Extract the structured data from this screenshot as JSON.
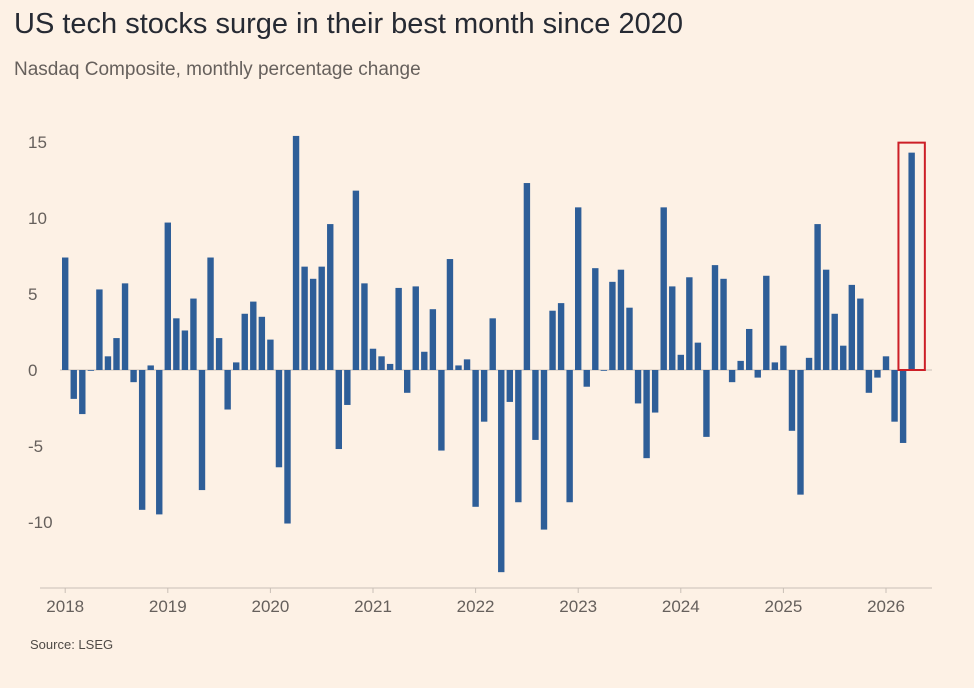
{
  "header": {
    "title": "US tech stocks surge in their best month since 2020",
    "subtitle": "Nasdaq Composite, monthly percentage change"
  },
  "footer": {
    "source": "Source: LSEG"
  },
  "colors": {
    "bar": "#2e5e98",
    "highlight": "#cc1f27",
    "axis": "#c9bfb6",
    "grid": "#e9dccf"
  },
  "chart_data": {
    "type": "bar",
    "title": "US tech stocks surge in their best month since 2020",
    "subtitle": "Nasdaq Composite, monthly percentage change",
    "xlabel": "",
    "ylabel": "",
    "ylim": [
      -14,
      16
    ],
    "yticks": [
      15,
      10,
      5,
      0,
      -5,
      -10
    ],
    "ytick_labels": [
      "15",
      "10",
      "5",
      "0",
      "-5",
      "-10"
    ],
    "xtick_labels": [
      "2018",
      "2019",
      "2020",
      "2021",
      "2022",
      "2023",
      "2024",
      "2025",
      "2026"
    ],
    "start": "2018-01",
    "grid": false,
    "highlight": {
      "label": "2026-04"
    },
    "categories": [
      "2018-01",
      "2018-02",
      "2018-03",
      "2018-04",
      "2018-05",
      "2018-06",
      "2018-07",
      "2018-08",
      "2018-09",
      "2018-10",
      "2018-11",
      "2018-12",
      "2019-01",
      "2019-02",
      "2019-03",
      "2019-04",
      "2019-05",
      "2019-06",
      "2019-07",
      "2019-08",
      "2019-09",
      "2019-10",
      "2019-11",
      "2019-12",
      "2020-01",
      "2020-02",
      "2020-03",
      "2020-04",
      "2020-05",
      "2020-06",
      "2020-07",
      "2020-08",
      "2020-09",
      "2020-10",
      "2020-11",
      "2020-12",
      "2021-01",
      "2021-02",
      "2021-03",
      "2021-04",
      "2021-05",
      "2021-06",
      "2021-07",
      "2021-08",
      "2021-09",
      "2021-10",
      "2021-11",
      "2021-12",
      "2022-01",
      "2022-02",
      "2022-03",
      "2022-04",
      "2022-05",
      "2022-06",
      "2022-07",
      "2022-08",
      "2022-09",
      "2022-10",
      "2022-11",
      "2022-12",
      "2023-01",
      "2023-02",
      "2023-03",
      "2023-04",
      "2023-05",
      "2023-06",
      "2023-07",
      "2023-08",
      "2023-09",
      "2023-10",
      "2023-11",
      "2023-12",
      "2024-01",
      "2024-02",
      "2024-03",
      "2024-04",
      "2024-05",
      "2024-06",
      "2024-07",
      "2024-08",
      "2024-09",
      "2024-10",
      "2024-11",
      "2024-12",
      "2025-01",
      "2025-02",
      "2025-03",
      "2025-04",
      "2025-05",
      "2025-06",
      "2025-07",
      "2025-08",
      "2025-09",
      "2025-10",
      "2025-11",
      "2025-12",
      "2026-01",
      "2026-02",
      "2026-03",
      "2026-04"
    ],
    "values": [
      7.4,
      -1.9,
      -2.9,
      0.0,
      5.3,
      0.9,
      2.1,
      5.7,
      -0.8,
      -9.2,
      0.3,
      -9.5,
      9.7,
      3.4,
      2.6,
      4.7,
      -7.9,
      7.4,
      2.1,
      -2.6,
      0.5,
      3.7,
      4.5,
      3.5,
      2.0,
      -6.4,
      -10.1,
      15.4,
      6.8,
      6.0,
      6.8,
      9.6,
      -5.2,
      -2.3,
      11.8,
      5.7,
      1.4,
      0.9,
      0.4,
      5.4,
      -1.5,
      5.5,
      1.2,
      4.0,
      -5.3,
      7.3,
      0.3,
      0.7,
      -9.0,
      -3.4,
      3.4,
      -13.3,
      -2.1,
      -8.7,
      12.3,
      -4.6,
      -10.5,
      3.9,
      4.4,
      -8.7,
      10.7,
      -1.1,
      6.7,
      0.0,
      5.8,
      6.6,
      4.1,
      -2.2,
      -5.8,
      -2.8,
      10.7,
      5.5,
      1.0,
      6.1,
      1.8,
      -4.4,
      6.9,
      6.0,
      -0.8,
      0.6,
      2.7,
      -0.5,
      6.2,
      0.5,
      1.6,
      -4.0,
      -8.2,
      0.8,
      9.6,
      6.6,
      3.7,
      1.6,
      5.6,
      4.7,
      -1.5,
      -0.5,
      0.9,
      -3.4,
      -4.8,
      14.3
    ]
  }
}
